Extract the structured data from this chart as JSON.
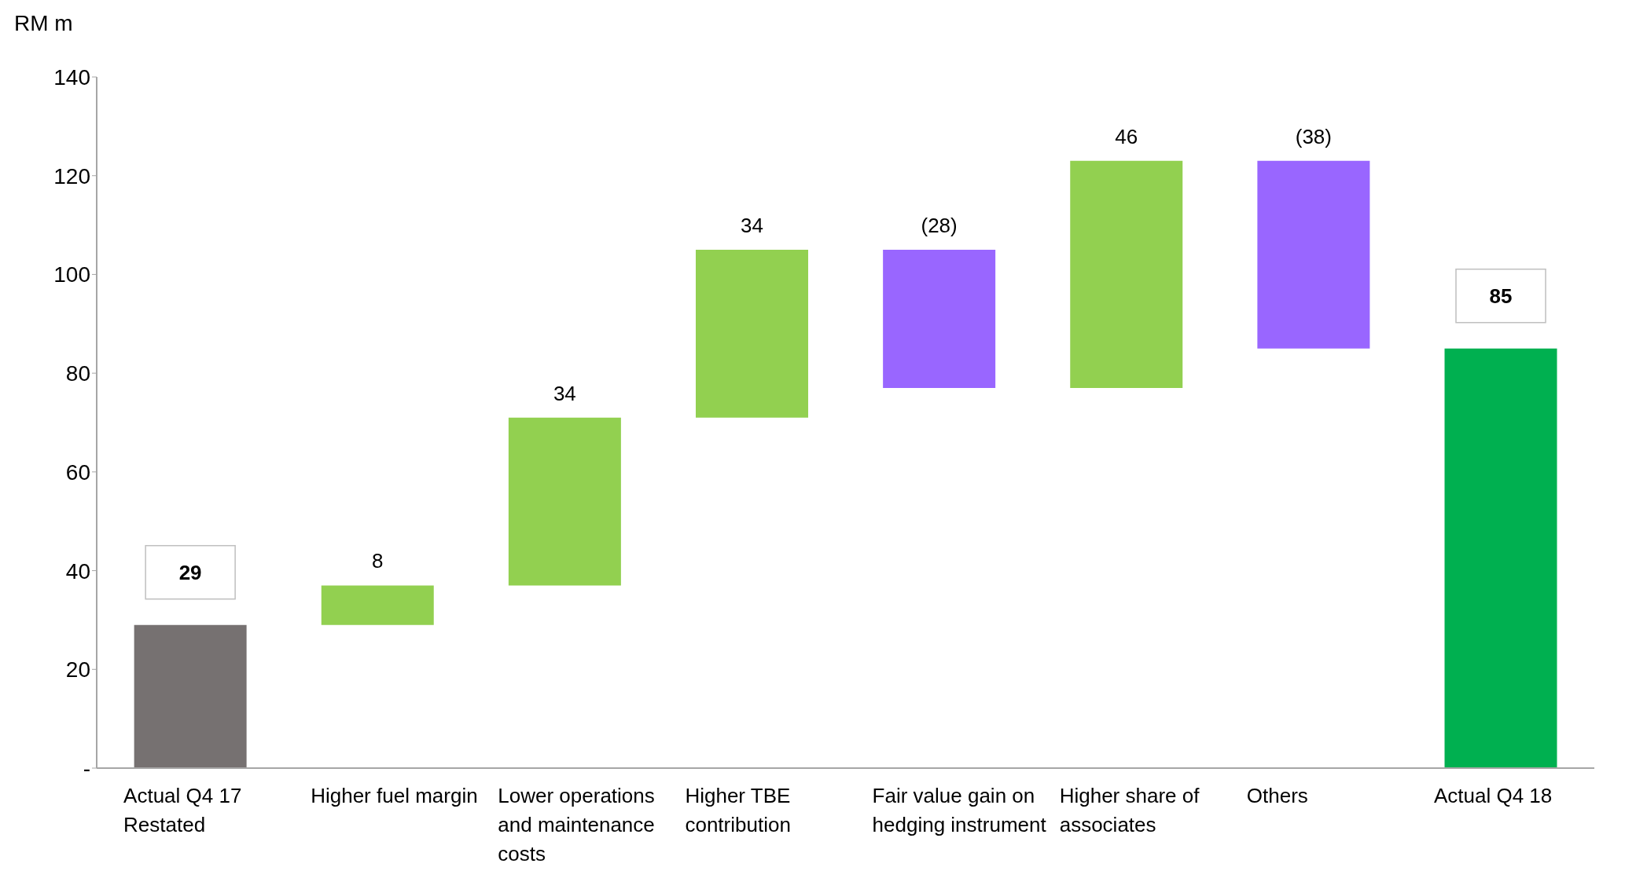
{
  "chart_data": {
    "type": "bar",
    "ylabel": "RM m",
    "categories": [
      "Actual Q4 17 Restated",
      "Higher fuel margin",
      "Lower operations and maintenance costs",
      "Higher TBE contribution",
      "Fair value gain on hedging instrument",
      "Higher share of associates",
      "Others",
      "Actual Q4 18"
    ],
    "values": [
      29,
      8,
      34,
      34,
      -28,
      46,
      -38,
      85
    ],
    "base": [
      0,
      29,
      37,
      71,
      105,
      77,
      123,
      0
    ],
    "colors": [
      "#767171",
      "#92d050",
      "#92d050",
      "#92d050",
      "#9966ff",
      "#92d050",
      "#9966ff",
      "#00b050"
    ],
    "value_labels": [
      "29",
      "8",
      "34",
      "34",
      "(28)",
      "46",
      "(38)",
      "85"
    ],
    "ylim": [
      0,
      140
    ],
    "yticks": [
      {
        "value": 0,
        "label": "-"
      },
      20,
      40,
      60,
      80,
      100,
      120,
      140
    ],
    "grid": false
  }
}
